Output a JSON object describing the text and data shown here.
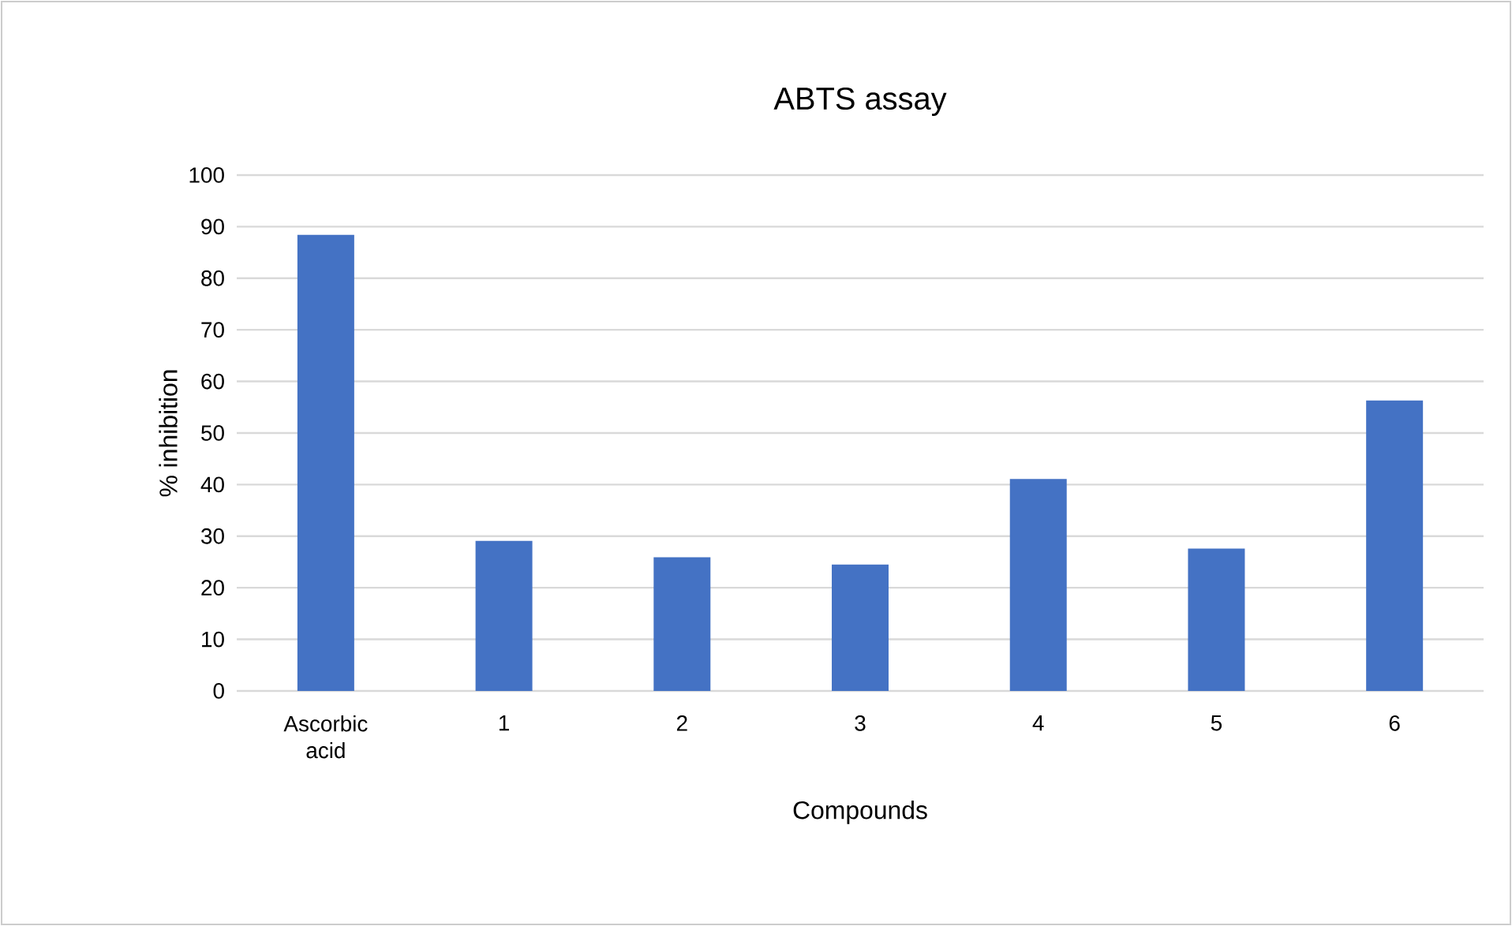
{
  "chart_data": {
    "type": "bar",
    "title": "ABTS assay",
    "xlabel": "Compounds",
    "ylabel": "% inhibition",
    "categories": [
      "Ascorbic acid",
      "1",
      "2",
      "3",
      "4",
      "5",
      "6"
    ],
    "values": [
      88.4,
      29.1,
      25.9,
      24.5,
      41.1,
      27.6,
      56.3
    ],
    "color": "#4472c4",
    "ylim": [
      0,
      100
    ],
    "yticks": [
      0,
      10,
      20,
      30,
      40,
      50,
      60,
      70,
      80,
      90,
      100
    ],
    "grid": "y"
  }
}
